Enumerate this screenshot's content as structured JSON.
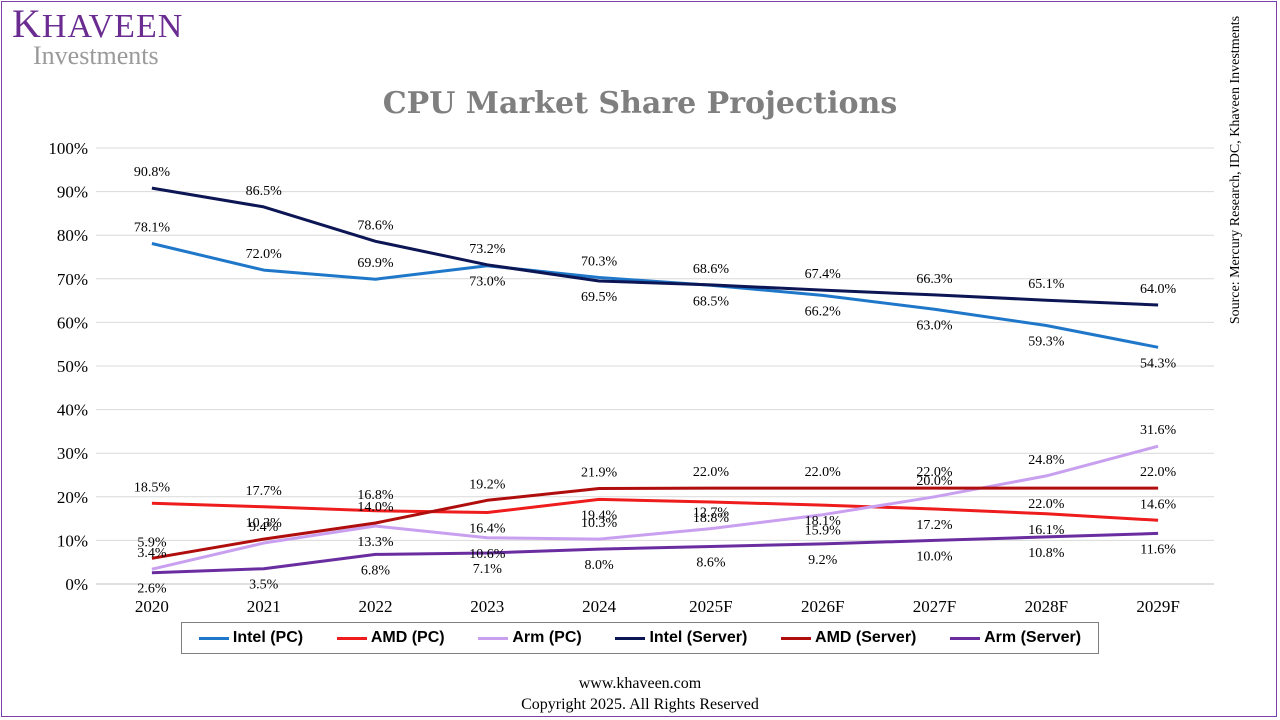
{
  "brand": {
    "name": "Khaveen",
    "name_first": "K",
    "name_rest": "HAVEEN",
    "sub": "Investments"
  },
  "footer": {
    "url": "www.khaveen.com",
    "copyright": "Copyright 2025. All Rights Reserved"
  },
  "source": "Source: Mercury Research, IDC, Khaveen Investments",
  "chart_data": {
    "type": "line",
    "title": "CPU Market Share Projections",
    "categories": [
      "2020",
      "2021",
      "2022",
      "2023",
      "2024",
      "2025F",
      "2026F",
      "2027F",
      "2028F",
      "2029F"
    ],
    "y_ticks": [
      "0%",
      "10%",
      "20%",
      "30%",
      "40%",
      "50%",
      "60%",
      "70%",
      "80%",
      "90%",
      "100%"
    ],
    "ylim": [
      0,
      100
    ],
    "grid": true,
    "legend_position": "bottom",
    "series": [
      {
        "name": "Intel (PC)",
        "color": "#1f77c9",
        "values": [
          78.1,
          72.0,
          69.9,
          73.0,
          70.3,
          68.5,
          66.2,
          63.0,
          59.3,
          54.3
        ],
        "labels": [
          "78.1%",
          "72.0%",
          "69.9%",
          "73.0%",
          "70.3%",
          "68.5%",
          "66.2%",
          "63.0%",
          "59.3%",
          "54.3%"
        ],
        "label_pos": [
          "a",
          "a",
          "a",
          "b",
          "a",
          "b",
          "b",
          "b",
          "b",
          "b"
        ]
      },
      {
        "name": "AMD (PC)",
        "color": "#ee1c1c",
        "values": [
          18.5,
          17.7,
          16.8,
          16.4,
          19.4,
          18.8,
          18.1,
          17.2,
          16.1,
          14.6
        ],
        "labels": [
          "18.5%",
          "17.7%",
          "16.8%",
          "16.4%",
          "19.4%",
          "18.8%",
          "18.1%",
          "17.2%",
          "16.1%",
          "14.6%"
        ],
        "label_pos": [
          "a",
          "a",
          "a",
          "b",
          "b",
          "b",
          "b",
          "b",
          "b",
          "a"
        ]
      },
      {
        "name": "Arm (PC)",
        "color": "#c9a0f0",
        "values": [
          3.4,
          9.4,
          13.3,
          10.6,
          10.3,
          12.7,
          15.9,
          20.0,
          24.8,
          31.6
        ],
        "labels": [
          "3.4%",
          "9.4%",
          "13.3%",
          "10.6%",
          "10.3%",
          "12.7%",
          "15.9%",
          "20.0%",
          "24.8%",
          "31.6%"
        ],
        "label_pos": [
          "a",
          "a",
          "b",
          "b",
          "a",
          "a",
          "b",
          "a",
          "a",
          "a"
        ]
      },
      {
        "name": "Intel (Server)",
        "color": "#0d1654",
        "values": [
          90.8,
          86.5,
          78.6,
          73.2,
          69.5,
          68.6,
          67.4,
          66.3,
          65.1,
          64.0
        ],
        "labels": [
          "90.8%",
          "86.5%",
          "78.6%",
          "73.2%",
          "69.5%",
          "68.6%",
          "67.4%",
          "66.3%",
          "65.1%",
          "64.0%"
        ],
        "label_pos": [
          "a",
          "a",
          "a",
          "a",
          "b",
          "a",
          "a",
          "a",
          "a",
          "a"
        ]
      },
      {
        "name": "AMD (Server)",
        "color": "#b00d0d",
        "values": [
          5.9,
          10.3,
          14.0,
          19.2,
          21.9,
          22.0,
          22.0,
          22.0,
          22.0,
          22.0
        ],
        "labels": [
          "5.9%",
          "10.3%",
          "14.0%",
          "19.2%",
          "21.9%",
          "22.0%",
          "22.0%",
          "22.0%",
          "22.0%",
          "22.0%"
        ],
        "label_pos": [
          "a",
          "a",
          "a",
          "a",
          "a",
          "a",
          "a",
          "a",
          "b",
          "a"
        ]
      },
      {
        "name": "Arm (Server)",
        "color": "#6a2da0",
        "values": [
          2.6,
          3.5,
          6.8,
          7.1,
          8.0,
          8.6,
          9.2,
          10.0,
          10.8,
          11.6
        ],
        "labels": [
          "2.6%",
          "3.5%",
          "6.8%",
          "7.1%",
          "8.0%",
          "8.6%",
          "9.2%",
          "10.0%",
          "10.8%",
          "11.6%"
        ],
        "label_pos": [
          "b",
          "b",
          "b",
          "b",
          "b",
          "b",
          "b",
          "b",
          "b",
          "b"
        ]
      }
    ]
  }
}
